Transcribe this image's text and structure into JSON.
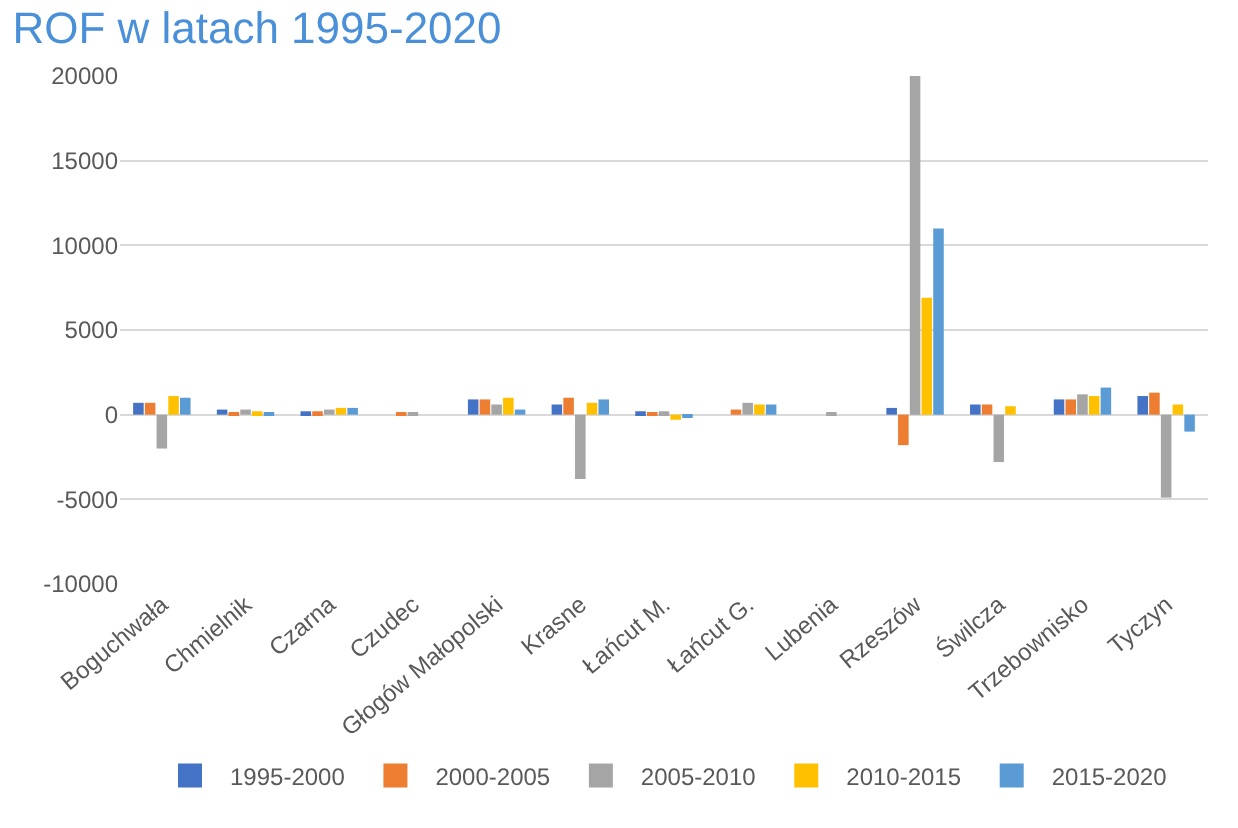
{
  "chart_data": {
    "type": "bar",
    "title": "ROF w latach 1995-2020",
    "categories": [
      "Boguchwała",
      "Chmielnik",
      "Czarna",
      "Czudec",
      "Głogów Małopolski",
      "Krasne",
      "Łańcut M.",
      "Łańcut G.",
      "Lubenia",
      "Rzeszów",
      "Świlcza",
      "Trzebownisko",
      "Tyczyn"
    ],
    "series": [
      {
        "name": "1995-2000",
        "color": "#4472c4",
        "values": [
          700,
          300,
          200,
          0,
          900,
          600,
          200,
          0,
          0,
          400,
          600,
          900,
          1100
        ]
      },
      {
        "name": "2000-2005",
        "color": "#ed7d31",
        "values": [
          700,
          100,
          200,
          100,
          900,
          1000,
          100,
          300,
          0,
          -1800,
          600,
          900,
          1300
        ]
      },
      {
        "name": "2005-2010",
        "color": "#a5a5a5",
        "values": [
          -2000,
          300,
          300,
          100,
          600,
          -3800,
          200,
          700,
          100,
          20000,
          -2800,
          1200,
          -4900
        ]
      },
      {
        "name": "2010-2015",
        "color": "#ffc000",
        "values": [
          1100,
          200,
          400,
          0,
          1000,
          700,
          -300,
          600,
          0,
          6900,
          500,
          1100,
          600
        ]
      },
      {
        "name": "2015-2020",
        "color": "#5b9bd5",
        "values": [
          1000,
          100,
          400,
          0,
          300,
          900,
          -200,
          600,
          0,
          11000,
          0,
          1600,
          -1000
        ]
      }
    ],
    "ylim": [
      -10000,
      20000
    ],
    "yticks": [
      -10000,
      -5000,
      0,
      5000,
      10000,
      15000,
      20000
    ],
    "grid": "y",
    "legend": "bottom"
  }
}
